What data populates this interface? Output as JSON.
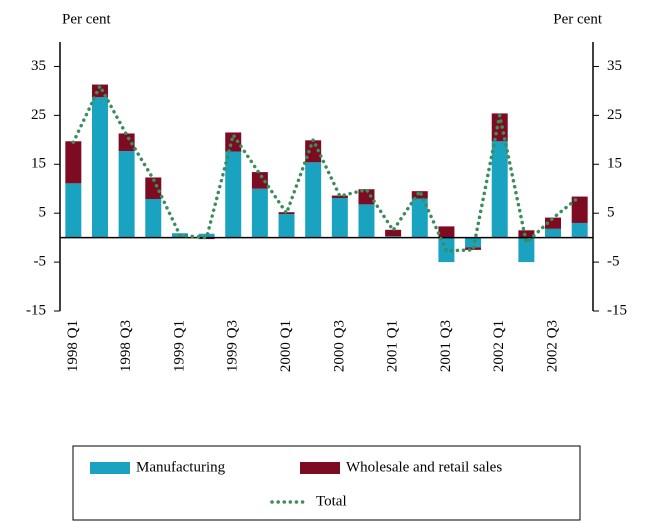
{
  "chart_data": {
    "type": "bar",
    "stacked": true,
    "y_label_left": "Per cent",
    "y_label_right": "Per cent",
    "categories": [
      "1998 Q1",
      null,
      "1998 Q3",
      null,
      "1999 Q1",
      null,
      "1999 Q3",
      null,
      "2000 Q1",
      null,
      "2000 Q3",
      null,
      "2001 Q1",
      null,
      "2001 Q3",
      null,
      "2002 Q1",
      null,
      "2002 Q3",
      null
    ],
    "series": [
      {
        "name": "Manufacturing",
        "type": "bar",
        "color": "#1aa3c1",
        "values": [
          11.1,
          28.7,
          17.7,
          7.9,
          0.9,
          0.8,
          17.6,
          10,
          4.8,
          15.4,
          8.1,
          6.8,
          0.3,
          8,
          -5,
          -2,
          19.7,
          -5,
          1.8,
          3
        ]
      },
      {
        "name": "Wholesale and retail sales",
        "type": "bar",
        "color": "#7d0c22",
        "values": [
          8.6,
          2.6,
          3.6,
          4.4,
          0,
          -0.3,
          3.9,
          3.4,
          0.4,
          4.5,
          0.5,
          3.1,
          1.3,
          1.5,
          2.3,
          -0.5,
          5.7,
          1.5,
          2.3,
          5.4
        ]
      },
      {
        "name": "Total",
        "type": "line",
        "color": "#3d8c5c",
        "values": [
          19.5,
          31,
          21,
          12,
          0.5,
          0,
          21,
          13,
          5,
          20,
          8.5,
          9.8,
          1.5,
          9.5,
          -2.7,
          -2.5,
          25,
          -1,
          4,
          8.4
        ]
      }
    ],
    "ylim": [
      -15,
      40
    ],
    "yticks": [
      35,
      25,
      15,
      5,
      -5,
      -15
    ]
  }
}
